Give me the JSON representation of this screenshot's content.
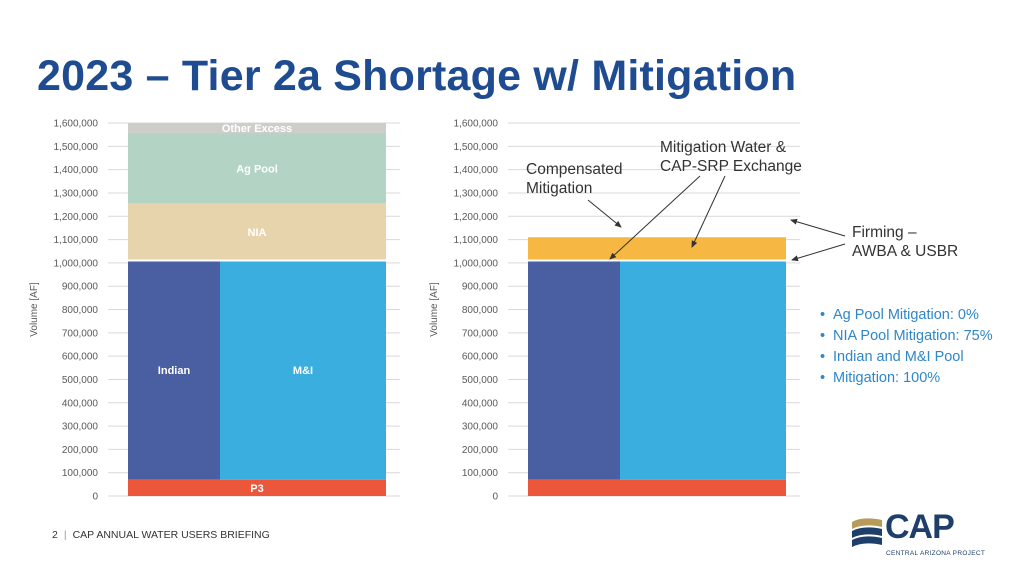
{
  "title": "2023 – Tier 2a Shortage w/ Mitigation",
  "footer": {
    "page_number": "2",
    "text": "CAP ANNUAL WATER USERS BRIEFING"
  },
  "logo": {
    "name": "CAP",
    "subtitle": "CENTRAL ARIZONA PROJECT"
  },
  "annotations": {
    "compensated": [
      "Compensated",
      "Mitigation"
    ],
    "mitigation_water": [
      "Mitigation Water &",
      "CAP-SRP Exchange"
    ],
    "firming": [
      "Firming –",
      "AWBA & USBR"
    ]
  },
  "bullets": [
    "Ag Pool Mitigation: 0%",
    "NIA Pool Mitigation: 75%",
    "Indian and M&I Pool",
    "Mitigation: 100%"
  ],
  "colors": {
    "title": "#1f4b91",
    "indian": "#4a5fa1",
    "mi": "#3aaede",
    "p3": "#ec563b",
    "nia": "#e7d3ac",
    "ag": "#b3d4c4",
    "other_excess": "#cfcdca",
    "mitigation": "#f6b842",
    "bullets": "#2f86c8"
  },
  "chart_data": [
    {
      "type": "bar",
      "ylabel": "Volume [AF]",
      "ylim": [
        0,
        1600000
      ],
      "yticks": [
        "0",
        "100,000",
        "200,000",
        "300,000",
        "400,000",
        "500,000",
        "600,000",
        "700,000",
        "800,000",
        "900,000",
        "1,000,000",
        "1,100,000",
        "1,200,000",
        "1,300,000",
        "1,400,000",
        "1,500,000",
        "1,600,000"
      ],
      "grid": true,
      "segments": [
        {
          "name": "P3",
          "label": "P3",
          "from": 0,
          "to": 70000,
          "col": "all",
          "color": "p3"
        },
        {
          "name": "Indian",
          "label": "Indian",
          "from": 70000,
          "to": 1010000,
          "col": "indian",
          "color": "indian"
        },
        {
          "name": "M&I",
          "label": "M&I",
          "from": 70000,
          "to": 1010000,
          "col": "mi",
          "color": "mi"
        },
        {
          "name": "NIA",
          "label": "NIA",
          "from": 1010000,
          "to": 1255000,
          "col": "all",
          "color": "nia"
        },
        {
          "name": "Ag Pool",
          "label": "Ag Pool",
          "from": 1255000,
          "to": 1555000,
          "col": "all",
          "color": "ag"
        },
        {
          "name": "Other Excess",
          "label": "Other Excess",
          "from": 1555000,
          "to": 1600000,
          "col": "all",
          "color": "other_excess"
        }
      ]
    },
    {
      "type": "bar",
      "ylabel": "Volume [AF]",
      "ylim": [
        0,
        1600000
      ],
      "yticks": [
        "0",
        "100,000",
        "200,000",
        "300,000",
        "400,000",
        "500,000",
        "600,000",
        "700,000",
        "800,000",
        "900,000",
        "1,000,000",
        "1,100,000",
        "1,200,000",
        "1,300,000",
        "1,400,000",
        "1,500,000",
        "1,600,000"
      ],
      "grid": true,
      "segments": [
        {
          "name": "P3",
          "label": "",
          "from": 0,
          "to": 70000,
          "col": "all",
          "color": "p3"
        },
        {
          "name": "Indian",
          "label": "",
          "from": 70000,
          "to": 1010000,
          "col": "indian",
          "color": "indian"
        },
        {
          "name": "M&I",
          "label": "",
          "from": 70000,
          "to": 1010000,
          "col": "mi",
          "color": "mi"
        },
        {
          "name": "Mitigation / Firming",
          "label": "",
          "from": 1010000,
          "to": 1110000,
          "col": "all",
          "color": "mitigation"
        }
      ]
    }
  ]
}
